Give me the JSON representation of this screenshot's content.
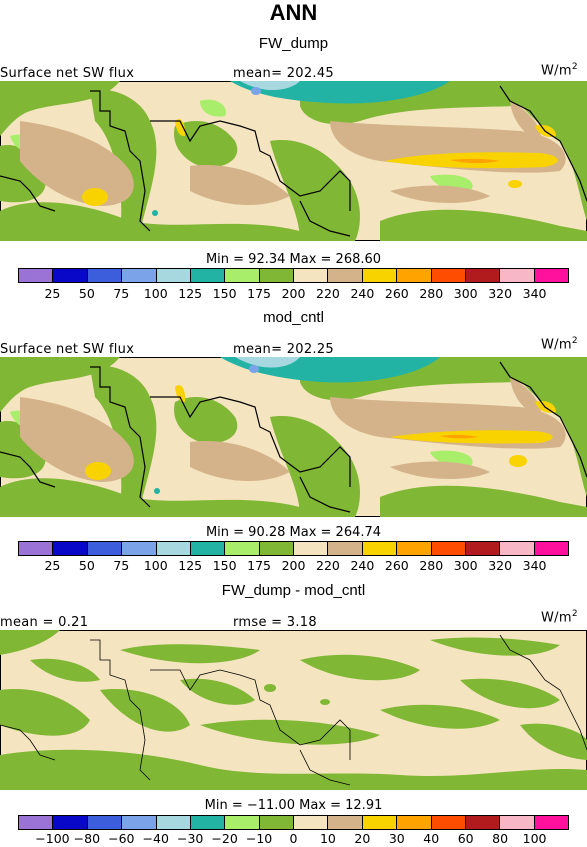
{
  "title": "ANN",
  "colors": {
    "abs": [
      "#9b72d6",
      "#0a08c8",
      "#3c5ddc",
      "#7aa3ea",
      "#a8d8df",
      "#23b3a5",
      "#a8ee6a",
      "#80b735",
      "#f4e4bf",
      "#d4b38b",
      "#f8d300",
      "#ffa300",
      "#ff4d00",
      "#b21b1e",
      "#f7b7c6",
      "#ff119e"
    ],
    "diff": [
      "#9b72d6",
      "#0a08c8",
      "#3c5ddc",
      "#7aa3ea",
      "#a8d8df",
      "#23b3a5",
      "#a8ee6a",
      "#80b735",
      "#f4e4bf",
      "#d4b38b",
      "#f8d300",
      "#ffa300",
      "#ff4d00",
      "#b21b1e",
      "#f7b7c6",
      "#ff119e"
    ]
  },
  "panels": [
    {
      "title": "FW_dump",
      "left_label": "Surface net SW flux",
      "center_label": "mean= 202.45",
      "units": "W/m",
      "units_sup": "2",
      "min_max": "Min =  92.34 Max = 268.60",
      "ticks": [
        "25",
        "50",
        "75",
        "100",
        "125",
        "150",
        "175",
        "200",
        "220",
        "240",
        "260",
        "280",
        "300",
        "320",
        "340"
      ]
    },
    {
      "title": "mod_cntl",
      "left_label": "Surface net SW flux",
      "center_label": "mean= 202.25",
      "units": "W/m",
      "units_sup": "2",
      "min_max": "Min =  90.28 Max = 264.74",
      "ticks": [
        "25",
        "50",
        "75",
        "100",
        "125",
        "150",
        "175",
        "200",
        "220",
        "240",
        "260",
        "280",
        "300",
        "320",
        "340"
      ]
    },
    {
      "title": "FW_dump - mod_cntl",
      "left_label": "mean =   0.21",
      "center_label": "rmse =   3.18",
      "units": "W/m",
      "units_sup": "2",
      "min_max": "Min = −11.00 Max =  12.91",
      "ticks": [
        "−100",
        "−80",
        "−60",
        "−40",
        "−30",
        "−20",
        "−10",
        "0",
        "10",
        "20",
        "30",
        "40",
        "60",
        "80",
        "100"
      ]
    }
  ],
  "chart_data": [
    {
      "type": "heatmap",
      "title": "FW_dump",
      "variable": "Surface net SW flux",
      "units": "W/m2",
      "mean": 202.45,
      "min": 92.34,
      "max": 268.6,
      "levels": [
        25,
        50,
        75,
        100,
        125,
        150,
        175,
        200,
        220,
        240,
        260,
        280,
        300,
        320,
        340
      ]
    },
    {
      "type": "heatmap",
      "title": "mod_cntl",
      "variable": "Surface net SW flux",
      "units": "W/m2",
      "mean": 202.25,
      "min": 90.28,
      "max": 264.74,
      "levels": [
        25,
        50,
        75,
        100,
        125,
        150,
        175,
        200,
        220,
        240,
        260,
        280,
        300,
        320,
        340
      ]
    },
    {
      "type": "heatmap",
      "title": "FW_dump - mod_cntl",
      "units": "W/m2",
      "mean": 0.21,
      "rmse": 3.18,
      "min": -11.0,
      "max": 12.91,
      "levels": [
        -100,
        -80,
        -60,
        -40,
        -30,
        -20,
        -10,
        0,
        10,
        20,
        30,
        40,
        60,
        80,
        100
      ]
    }
  ]
}
